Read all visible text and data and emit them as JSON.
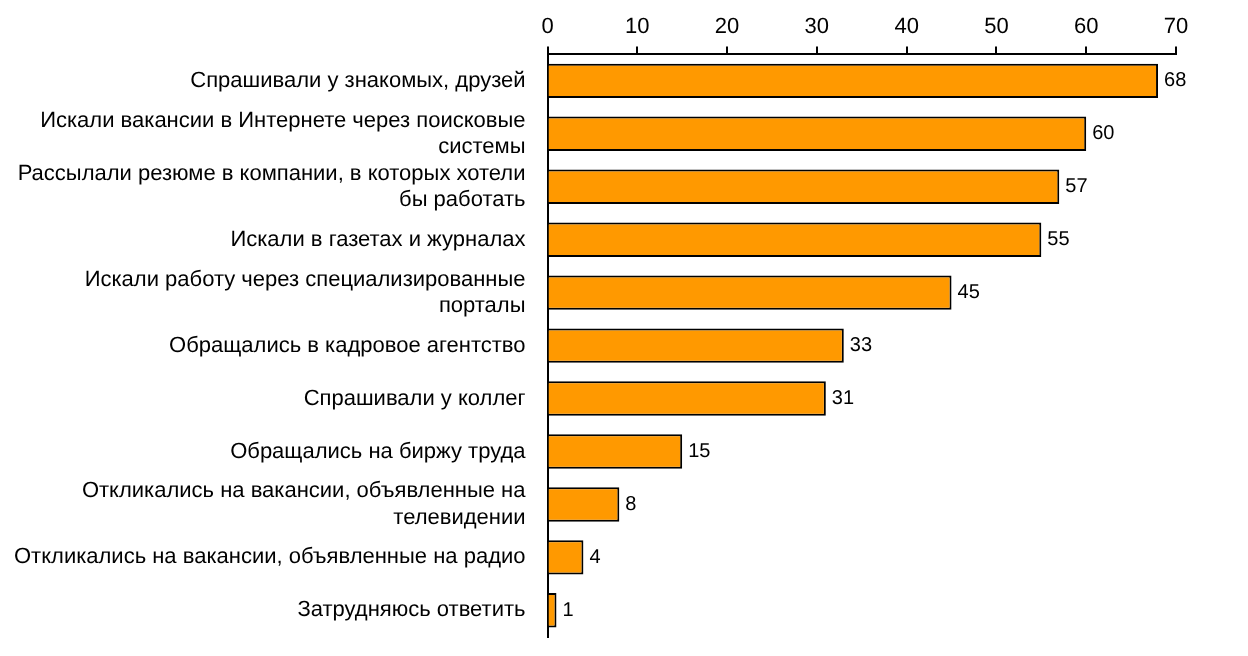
{
  "chart_data": {
    "type": "bar",
    "orientation": "horizontal",
    "categories": [
      "Спрашивали у знакомых, друзей",
      "Искали вакансии в Интернете через поисковые системы",
      "Рассылали резюме в компании, в которых хотели бы работать",
      "Искали в газетах и журналах",
      "Искали работу через специализированные порталы",
      "Обращались в кадровое агентство",
      "Спрашивали у коллег",
      "Обращались на биржу труда",
      "Откликались на вакансии, объявленные на телевидении",
      "Откликались на вакансии, объявленные на радио",
      "Затрудняюсь ответить"
    ],
    "values": [
      68,
      60,
      57,
      55,
      45,
      33,
      31,
      15,
      8,
      4,
      1
    ],
    "color": "#ff9900",
    "xlim": [
      0,
      70
    ],
    "xticks": [
      0,
      10,
      20,
      30,
      40,
      50,
      60,
      70
    ],
    "grid": false,
    "legend": false,
    "data_labels": true
  }
}
